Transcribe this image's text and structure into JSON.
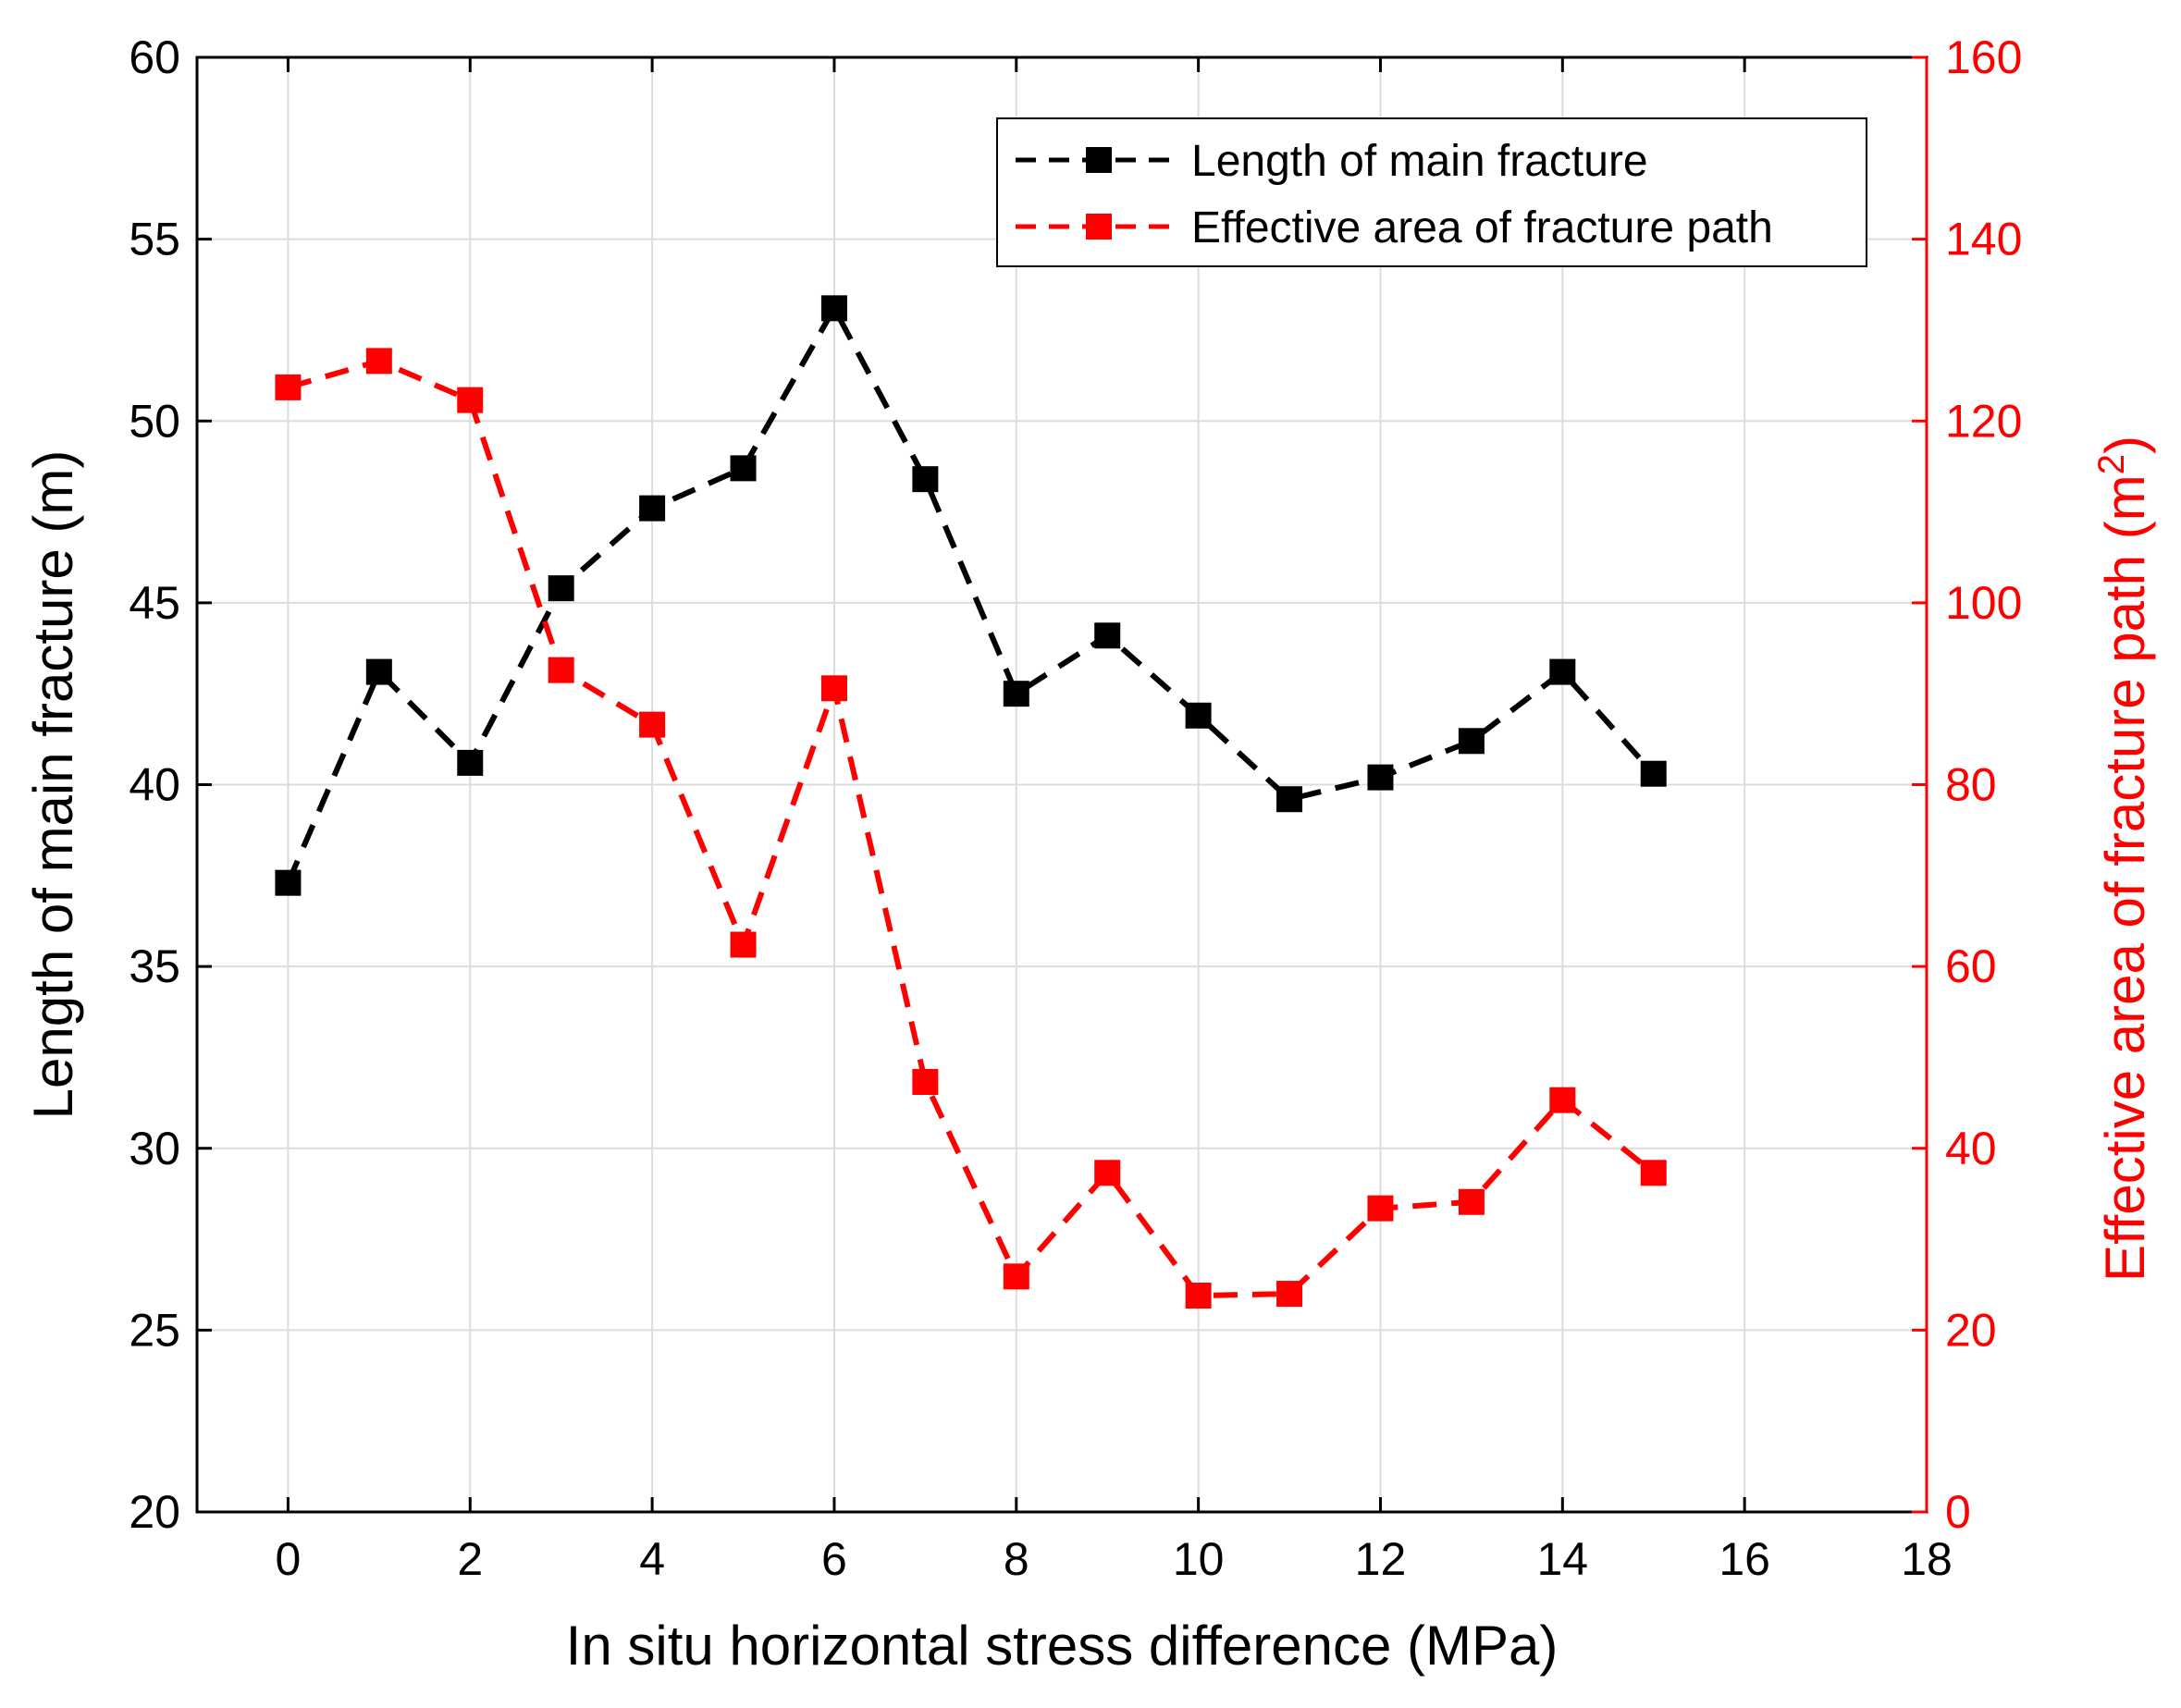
{
  "chart_data": {
    "type": "line",
    "xlabel": "In situ horizontal stress difference (MPa)",
    "ylabel_left": "Length of main fracture (m)",
    "ylabel_right_main": "Effective area of fracture path (m",
    "ylabel_right_sup": "2",
    "ylabel_right_close": ")",
    "xlim": [
      -1,
      18
    ],
    "ylim_left": [
      20,
      60
    ],
    "ylim_right": [
      0,
      160
    ],
    "x_ticks": [
      0,
      2,
      4,
      6,
      8,
      10,
      12,
      14,
      16,
      18
    ],
    "y_left_ticks": [
      20,
      25,
      30,
      35,
      40,
      45,
      50,
      55,
      60
    ],
    "y_right_ticks": [
      0,
      20,
      40,
      60,
      80,
      100,
      120,
      140,
      160
    ],
    "grid": true,
    "legend_position": "top-right",
    "series": [
      {
        "name": "Length of main fracture",
        "axis": "left",
        "color": "#000000",
        "marker": "square",
        "line_style": "dashed",
        "x": [
          0,
          1,
          2,
          3,
          4,
          5,
          6,
          7,
          8,
          9,
          10,
          11,
          12,
          13,
          14,
          15
        ],
        "values": [
          37.3,
          43.1,
          40.6,
          45.4,
          47.6,
          48.7,
          53.1,
          48.4,
          42.5,
          44.1,
          41.9,
          39.6,
          40.2,
          41.2,
          43.1,
          40.3
        ]
      },
      {
        "name": "Effective area of fracture path",
        "axis": "right",
        "color": "#ff0000",
        "marker": "square",
        "line_style": "dashed",
        "x": [
          0,
          1,
          2,
          3,
          4,
          5,
          6,
          7,
          8,
          9,
          10,
          11,
          12,
          13,
          14,
          15
        ],
        "values": [
          123.7,
          126.6,
          122.3,
          92.6,
          86.6,
          62.4,
          90.6,
          47.3,
          25.9,
          37.3,
          23.8,
          24.0,
          33.4,
          34.1,
          45.3,
          37.3
        ]
      }
    ]
  }
}
